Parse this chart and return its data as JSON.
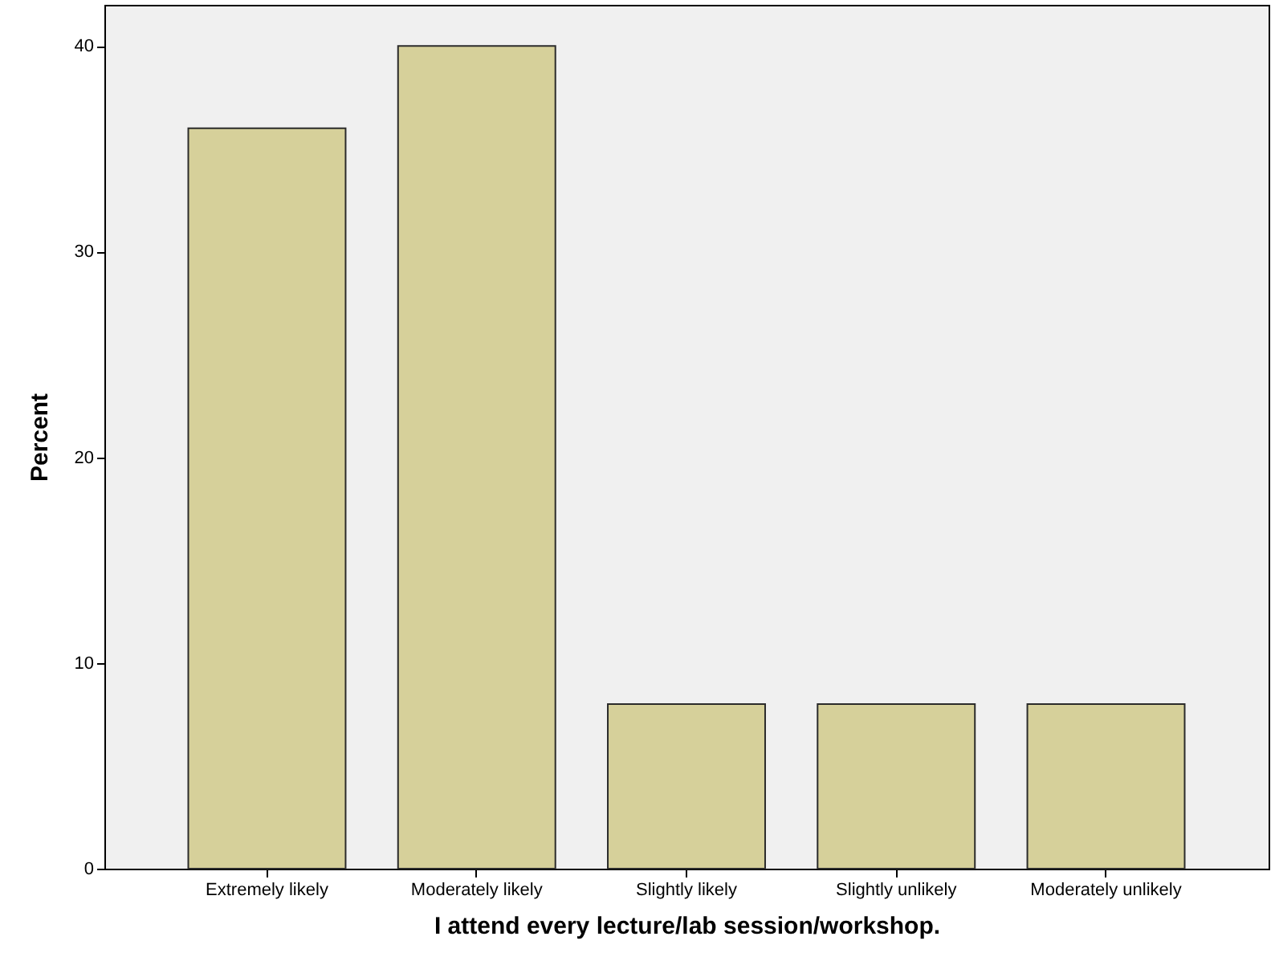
{
  "chart_data": {
    "type": "bar",
    "xlabel": "I attend every lecture/lab session/workshop.",
    "ylabel": "Percent",
    "categories": [
      "Extremely likely",
      "Moderately likely",
      "Slightly likely",
      "Slightly unlikely",
      "Moderately unlikely"
    ],
    "values": [
      36,
      40,
      8,
      8,
      8
    ],
    "color": "#d6d09a",
    "ylim": [
      0,
      42
    ],
    "yticks": [
      0,
      10,
      20,
      30,
      40
    ],
    "grid": false
  }
}
